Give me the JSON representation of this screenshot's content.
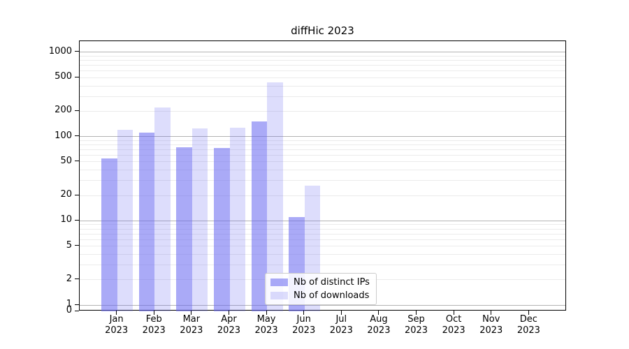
{
  "title": "diffHic 2023",
  "chart_data": {
    "type": "bar",
    "title": "diffHic 2023",
    "categories": [
      "Jan 2023",
      "Feb 2023",
      "Mar 2023",
      "Apr 2023",
      "May 2023",
      "Jun 2023",
      "Jul 2023",
      "Aug 2023",
      "Sep 2023",
      "Oct 2023",
      "Nov 2023",
      "Dec 2023"
    ],
    "series": [
      {
        "name": "Nb of distinct IPs",
        "color": "rgba(100,100,240,0.55)",
        "values": [
          55,
          111,
          75,
          73,
          152,
          11,
          0,
          0,
          0,
          0,
          0,
          0
        ]
      },
      {
        "name": "Nb of downloads",
        "color": "rgba(100,100,240,0.22)",
        "values": [
          121,
          220,
          124,
          128,
          442,
          26,
          0,
          0,
          0,
          0,
          0,
          0
        ]
      }
    ],
    "xlabel": "",
    "ylabel": "",
    "yscale": "log",
    "yticks": [
      0,
      1,
      2,
      5,
      10,
      20,
      50,
      100,
      200,
      500,
      1000
    ],
    "ylim": [
      0,
      1350
    ],
    "grid": {
      "orientation": "horizontal",
      "major_color": "#b3b3b3",
      "minor_color": "#ebebeb",
      "minor_subs": [
        2,
        3,
        4,
        5,
        6,
        7,
        8,
        9
      ]
    },
    "legend_position": "bottom-center"
  }
}
